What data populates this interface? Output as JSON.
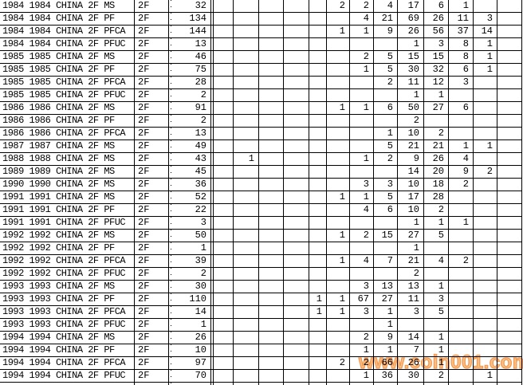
{
  "watermark": {
    "text": "www.coin001.com",
    "fill_color": "#fcc28b",
    "edge_color": "#f49a51"
  },
  "table": {
    "grid_line_color": "#000000",
    "rows": [
      {
        "label": "1984 1984 CHINA 2F MS",
        "unit": "2F",
        "total": "32",
        "cells": [
          "",
          "",
          "",
          "",
          "",
          "2",
          "2",
          "4",
          "17",
          "6",
          "1",
          "",
          ""
        ]
      },
      {
        "label": "1984 1984 CHINA 2F PF",
        "unit": "2F",
        "total": "134",
        "cells": [
          "",
          "",
          "",
          "",
          "",
          "",
          "4",
          "21",
          "69",
          "26",
          "11",
          "3",
          ""
        ]
      },
      {
        "label": "1984 1984 CHINA 2F PFCA",
        "unit": "2F",
        "total": "144",
        "cells": [
          "",
          "",
          "",
          "",
          "",
          "1",
          "1",
          "9",
          "26",
          "56",
          "37",
          "14",
          ""
        ]
      },
      {
        "label": "1984 1984 CHINA 2F PFUC",
        "unit": "2F",
        "total": "13",
        "cells": [
          "",
          "",
          "",
          "",
          "",
          "",
          "",
          "",
          "1",
          "3",
          "8",
          "1",
          ""
        ]
      },
      {
        "label": "1985 1985 CHINA 2F MS",
        "unit": "2F",
        "total": "46",
        "cells": [
          "",
          "",
          "",
          "",
          "",
          "",
          "2",
          "5",
          "15",
          "15",
          "8",
          "1",
          ""
        ]
      },
      {
        "label": "1985 1985 CHINA 2F PF",
        "unit": "2F",
        "total": "75",
        "cells": [
          "",
          "",
          "",
          "",
          "",
          "",
          "1",
          "5",
          "30",
          "32",
          "6",
          "1",
          ""
        ]
      },
      {
        "label": "1985 1985 CHINA 2F PFCA",
        "unit": "2F",
        "total": "28",
        "cells": [
          "",
          "",
          "",
          "",
          "",
          "",
          "",
          "2",
          "11",
          "12",
          "3",
          "",
          ""
        ]
      },
      {
        "label": "1985 1985 CHINA 2F PFUC",
        "unit": "2F",
        "total": "2",
        "cells": [
          "",
          "",
          "",
          "",
          "",
          "",
          "",
          "",
          "1",
          "1",
          "",
          "",
          ""
        ]
      },
      {
        "label": "1986 1986 CHINA 2F MS",
        "unit": "2F",
        "total": "91",
        "cells": [
          "",
          "",
          "",
          "",
          "",
          "1",
          "1",
          "6",
          "50",
          "27",
          "6",
          "",
          ""
        ]
      },
      {
        "label": "1986 1986 CHINA 2F PF",
        "unit": "2F",
        "total": "2",
        "cells": [
          "",
          "",
          "",
          "",
          "",
          "",
          "",
          "",
          "2",
          "",
          "",
          "",
          ""
        ]
      },
      {
        "label": "1986 1986 CHINA 2F PFCA",
        "unit": "2F",
        "total": "13",
        "cells": [
          "",
          "",
          "",
          "",
          "",
          "",
          "",
          "1",
          "10",
          "2",
          "",
          "",
          ""
        ]
      },
      {
        "label": "1987 1987 CHINA 2F MS",
        "unit": "2F",
        "total": "49",
        "cells": [
          "",
          "",
          "",
          "",
          "",
          "",
          "",
          "5",
          "21",
          "21",
          "1",
          "1",
          ""
        ]
      },
      {
        "label": "1988 1988 CHINA 2F MS",
        "unit": "2F",
        "total": "43",
        "cells": [
          "",
          "1",
          "",
          "",
          "",
          "",
          "1",
          "2",
          "9",
          "26",
          "4",
          "",
          ""
        ]
      },
      {
        "label": "1989 1989 CHINA 2F MS",
        "unit": "2F",
        "total": "45",
        "cells": [
          "",
          "",
          "",
          "",
          "",
          "",
          "",
          "",
          "14",
          "20",
          "9",
          "2",
          ""
        ]
      },
      {
        "label": "1990 1990 CHINA 2F MS",
        "unit": "2F",
        "total": "36",
        "cells": [
          "",
          "",
          "",
          "",
          "",
          "",
          "3",
          "3",
          "10",
          "18",
          "2",
          "",
          ""
        ]
      },
      {
        "label": "1991 1991 CHINA 2F MS",
        "unit": "2F",
        "total": "52",
        "cells": [
          "",
          "",
          "",
          "",
          "",
          "1",
          "1",
          "5",
          "17",
          "28",
          "",
          "",
          ""
        ]
      },
      {
        "label": "1991 1991 CHINA 2F PF",
        "unit": "2F",
        "total": "22",
        "cells": [
          "",
          "",
          "",
          "",
          "",
          "",
          "4",
          "6",
          "10",
          "2",
          "",
          "",
          ""
        ]
      },
      {
        "label": "1991 1991 CHINA 2F PFUC",
        "unit": "2F",
        "total": "3",
        "cells": [
          "",
          "",
          "",
          "",
          "",
          "",
          "",
          "",
          "1",
          "1",
          "1",
          "",
          ""
        ]
      },
      {
        "label": "1992 1992 CHINA 2F MS",
        "unit": "2F",
        "total": "50",
        "cells": [
          "",
          "",
          "",
          "",
          "",
          "1",
          "2",
          "15",
          "27",
          "5",
          "",
          "",
          ""
        ]
      },
      {
        "label": "1992 1992 CHINA 2F PF",
        "unit": "2F",
        "total": "1",
        "cells": [
          "",
          "",
          "",
          "",
          "",
          "",
          "",
          "",
          "1",
          "",
          "",
          "",
          ""
        ]
      },
      {
        "label": "1992 1992 CHINA 2F PFCA",
        "unit": "2F",
        "total": "39",
        "cells": [
          "",
          "",
          "",
          "",
          "",
          "1",
          "4",
          "7",
          "21",
          "4",
          "2",
          "",
          ""
        ]
      },
      {
        "label": "1992 1992 CHINA 2F PFUC",
        "unit": "2F",
        "total": "2",
        "cells": [
          "",
          "",
          "",
          "",
          "",
          "",
          "",
          "",
          "2",
          "",
          "",
          "",
          ""
        ]
      },
      {
        "label": "1993 1993 CHINA 2F MS",
        "unit": "2F",
        "total": "30",
        "cells": [
          "",
          "",
          "",
          "",
          "",
          "",
          "3",
          "13",
          "13",
          "1",
          "",
          "",
          ""
        ]
      },
      {
        "label": "1993 1993 CHINA 2F PF",
        "unit": "2F",
        "total": "110",
        "cells": [
          "",
          "",
          "",
          "",
          "1",
          "1",
          "67",
          "27",
          "11",
          "3",
          "",
          "",
          ""
        ]
      },
      {
        "label": "1993 1993 CHINA 2F PFCA",
        "unit": "2F",
        "total": "14",
        "cells": [
          "",
          "",
          "",
          "",
          "1",
          "1",
          "3",
          "1",
          "3",
          "5",
          "",
          "",
          ""
        ]
      },
      {
        "label": "1993 1993 CHINA 2F PFUC",
        "unit": "2F",
        "total": "1",
        "cells": [
          "",
          "",
          "",
          "",
          "",
          "",
          "",
          "1",
          "",
          "",
          "",
          "",
          ""
        ]
      },
      {
        "label": "1994 1994 CHINA 2F MS",
        "unit": "2F",
        "total": "26",
        "cells": [
          "",
          "",
          "",
          "",
          "",
          "",
          "2",
          "9",
          "14",
          "1",
          "",
          "",
          ""
        ]
      },
      {
        "label": "1994 1994 CHINA 2F PF",
        "unit": "2F",
        "total": "10",
        "cells": [
          "",
          "",
          "",
          "",
          "",
          "",
          "1",
          "1",
          "7",
          "1",
          "",
          "",
          ""
        ]
      },
      {
        "label": "1994 1994 CHINA 2F PFCA",
        "unit": "2F",
        "total": "97",
        "cells": [
          "",
          "",
          "",
          "",
          "",
          "2",
          "2",
          "66",
          "26",
          "1",
          "",
          "",
          ""
        ]
      },
      {
        "label": "1994 1994 CHINA 2F PFUC",
        "unit": "2F",
        "total": "70",
        "cells": [
          "",
          "",
          "",
          "",
          "",
          "",
          "1",
          "36",
          "30",
          "2",
          "",
          "1",
          ""
        ]
      }
    ]
  }
}
